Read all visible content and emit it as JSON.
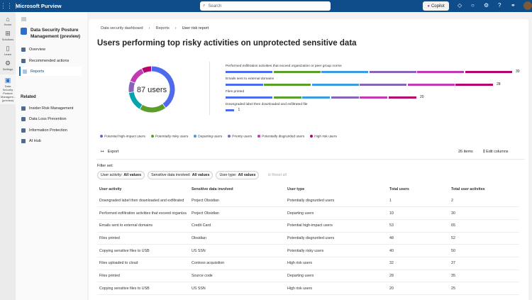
{
  "app": {
    "title": "Microsoft Purview",
    "search_placeholder": "Search",
    "copilot": "Copilot"
  },
  "rail": [
    {
      "label": "Home",
      "icon": "home-icon"
    },
    {
      "label": "Solutions",
      "icon": "grid-icon"
    },
    {
      "label": "Learn",
      "icon": "book-icon"
    },
    {
      "label": "Settings",
      "icon": "gear-icon"
    },
    {
      "label": "Data Security Posture Managem... (preview)",
      "icon": "dspm-icon"
    }
  ],
  "nav": {
    "title": "Data Security Posture Management (preview)",
    "items": [
      "Overview",
      "Recommended actions",
      "Reports"
    ],
    "related_label": "Related",
    "related": [
      "Insider Risk Management",
      "Data Loss Prevention",
      "Information Protection",
      "AI Hub"
    ]
  },
  "breadcrumb": [
    "Data security dashboard",
    "Reports",
    "User risk report"
  ],
  "page_title": "Users performing top risky activities on unprotected sensitive data",
  "chart_data": {
    "type": "bar",
    "donut": {
      "center_label": "87 users",
      "fractions": [
        0.4,
        0.19,
        0.14,
        0.08,
        0.12,
        0.07
      ]
    },
    "categories": [
      "Performed exfiltration activities that exceed organization or peer group norms",
      "Emails sent to external domains",
      "Files printed",
      "Downgraded label then downloaded and exfiltrated file"
    ],
    "totals": [
      30,
      28,
      20,
      1
    ],
    "series": [
      {
        "name": "Potential high-impact users",
        "color": "#4f6bed",
        "values": [
          5,
          4,
          5,
          1
        ]
      },
      {
        "name": "Potentially risky users",
        "color": "#5c9e2a",
        "values": [
          5,
          5,
          3,
          0
        ]
      },
      {
        "name": "Departing users",
        "color": "#3b9ae1",
        "values": [
          5,
          5,
          3,
          0
        ]
      },
      {
        "name": "Priority users",
        "color": "#8764b8",
        "values": [
          5,
          5,
          3,
          0
        ]
      },
      {
        "name": "Potentially disgruntled users",
        "color": "#c239b3",
        "values": [
          5,
          5,
          3,
          0
        ]
      },
      {
        "name": "High risk users",
        "color": "#b4046e",
        "values": [
          5,
          4,
          3,
          0
        ]
      }
    ],
    "donut_colors": [
      "#4f6bed",
      "#5c9e2a",
      "#03a3b0",
      "#8764b8",
      "#c239b3",
      "#b4046e"
    ],
    "legend": "bottom"
  },
  "toolbar": {
    "export": "Export",
    "items": "26 items",
    "edit_columns": "Edit columns"
  },
  "filters": {
    "label": "Filter set:",
    "chips": [
      {
        "key": "User activity:",
        "value": "All values"
      },
      {
        "key": "Sensitive data involved:",
        "value": "All values"
      },
      {
        "key": "User type:",
        "value": "All values"
      }
    ],
    "reset": "Reset all"
  },
  "table": {
    "headers": [
      "User activity",
      "Sensitive data involved",
      "User type",
      "Total users",
      "Total user activites"
    ],
    "rows": [
      [
        "Downgraded label then downloaded and exfiltrated",
        "Project Obsidian",
        "Potentially disgruntled users",
        "1",
        "2"
      ],
      [
        "Performed exfiltration activities that exceed organiza",
        "Project Obsidian",
        "Departing users",
        "10",
        "30"
      ],
      [
        "Emails sent to external domains",
        "Credit Card",
        "Potential high-impact users",
        "53",
        "65"
      ],
      [
        "Files printed",
        "Obsidian",
        "Potentially disgruntled users",
        "48",
        "52"
      ],
      [
        "Copying sensitive files to USB",
        "US SSN",
        "Potentially risky users",
        "40",
        "50"
      ],
      [
        "Files uploaded to cloud",
        "Contoso acquisition",
        "High risk users",
        "32",
        "37"
      ],
      [
        "Files printed",
        "Source code",
        "Departing users",
        "28",
        "35"
      ],
      [
        "Copying sensitive files to USB",
        "US SSN",
        "High risk users",
        "20",
        "25"
      ]
    ]
  }
}
